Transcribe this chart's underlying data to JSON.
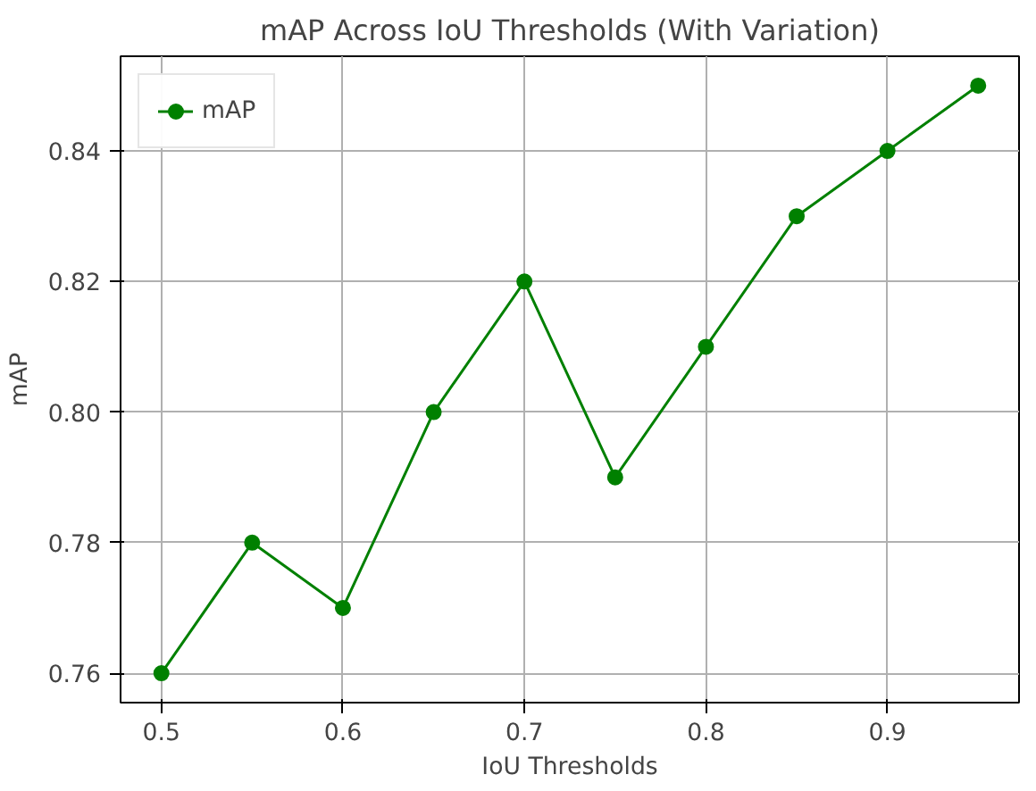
{
  "chart_data": {
    "type": "line",
    "title": "mAP Across IoU Thresholds (With Variation)",
    "xlabel": "IoU Thresholds",
    "ylabel": "mAP",
    "x": [
      0.5,
      0.55,
      0.6,
      0.65,
      0.7,
      0.75,
      0.8,
      0.85,
      0.9,
      0.95
    ],
    "series": [
      {
        "name": "mAP",
        "color": "#008000",
        "values": [
          0.76,
          0.78,
          0.77,
          0.8,
          0.82,
          0.79,
          0.81,
          0.83,
          0.84,
          0.85
        ]
      }
    ],
    "xlim": [
      0.4775,
      0.9725
    ],
    "ylim": [
      0.7555,
      0.8545
    ],
    "xticks": [
      0.5,
      0.6,
      0.7,
      0.8,
      0.9
    ],
    "yticks": [
      0.76,
      0.78,
      {
        "value": 0.8,
        "label": "0.80"
      },
      0.82,
      0.84
    ],
    "grid": true,
    "legend": "top left",
    "marker": "circle",
    "line_style": "solid"
  }
}
